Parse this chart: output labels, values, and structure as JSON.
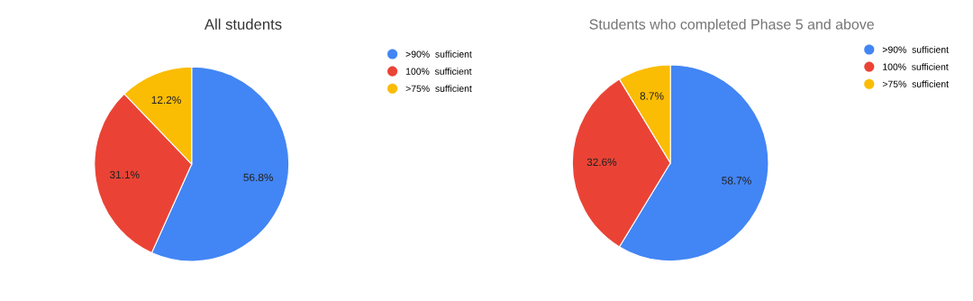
{
  "chart_data": [
    {
      "type": "pie",
      "title": "All students",
      "categories": [
        ">90%  sufficient",
        "100%  sufficient",
        ">75%  sufficient"
      ],
      "values": [
        56.8,
        31.1,
        12.2
      ],
      "colors": [
        "#4285f4",
        "#ea4335",
        "#fbbc04"
      ],
      "value_labels": [
        "56.8%",
        "31.1%",
        "12.2%"
      ],
      "legend": "top right"
    },
    {
      "type": "pie",
      "title": "Students who completed Phase 5 and above",
      "categories": [
        ">90%  sufficient",
        "100%  sufficient",
        ">75%  sufficient"
      ],
      "values": [
        58.7,
        32.6,
        8.7
      ],
      "colors": [
        "#4285f4",
        "#ea4335",
        "#fbbc04"
      ],
      "value_labels": [
        "58.7%",
        "32.6%",
        "8.7%"
      ],
      "legend": "top right"
    }
  ]
}
